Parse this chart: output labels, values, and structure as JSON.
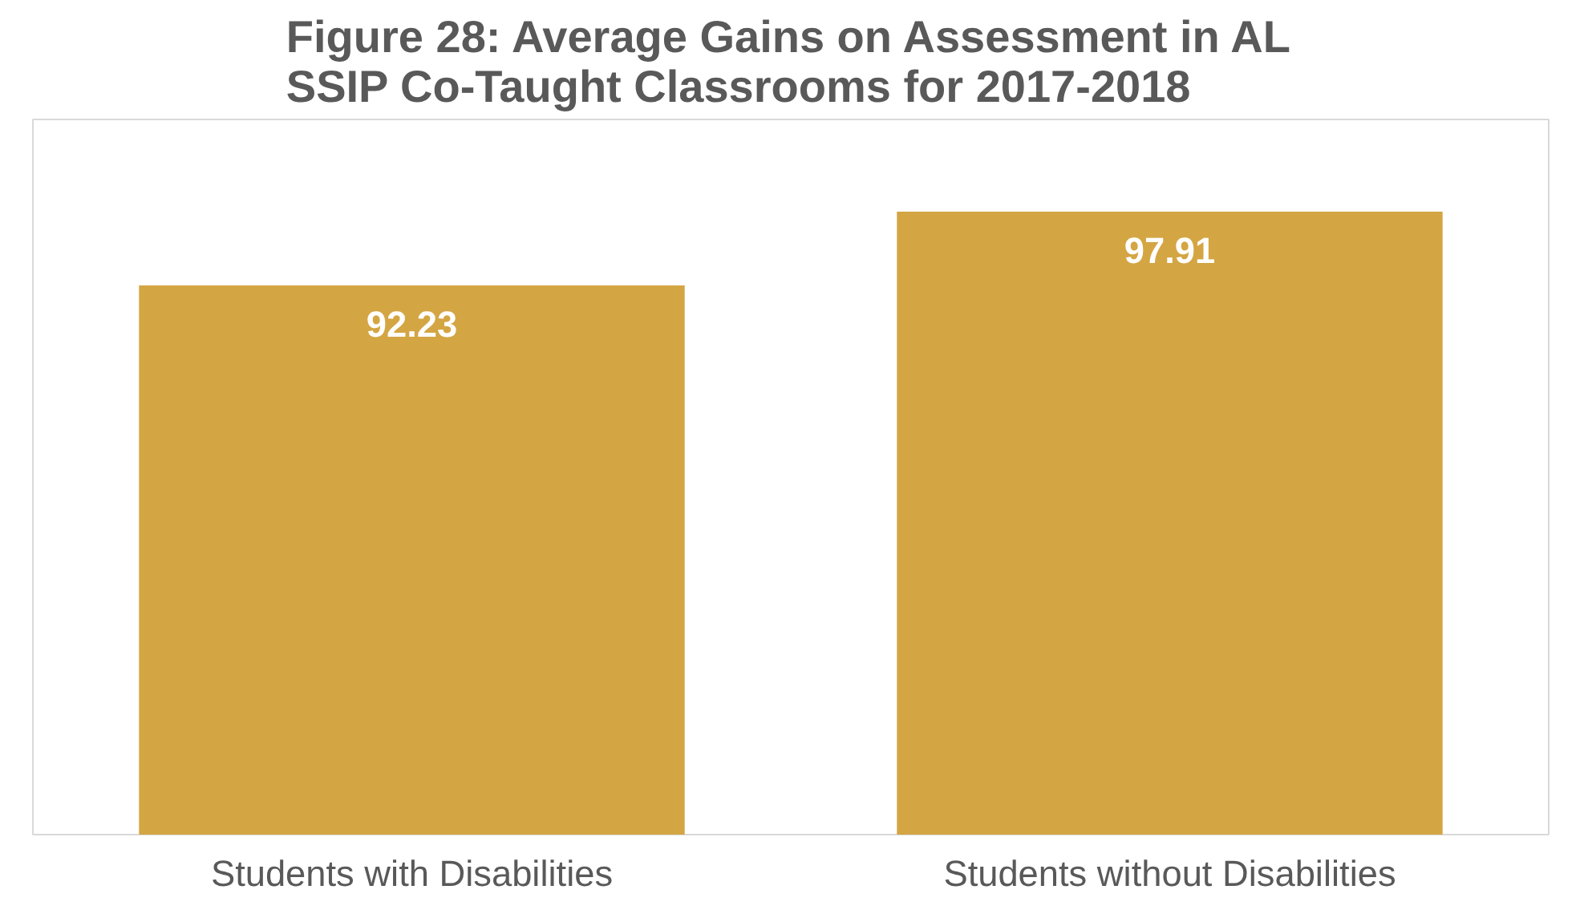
{
  "chart_data": {
    "type": "bar",
    "title": "Figure 28: Average Gains on Assessment in AL\nSSIP Co-Taught Classrooms for 2017-2018",
    "categories": [
      "Students with Disabilities",
      "Students without Disabilities"
    ],
    "values": [
      92.23,
      97.91
    ],
    "color": "#d4a543",
    "ylim": [
      50,
      105
    ],
    "data_labels": true,
    "grid": false,
    "tick_labels": "x"
  }
}
